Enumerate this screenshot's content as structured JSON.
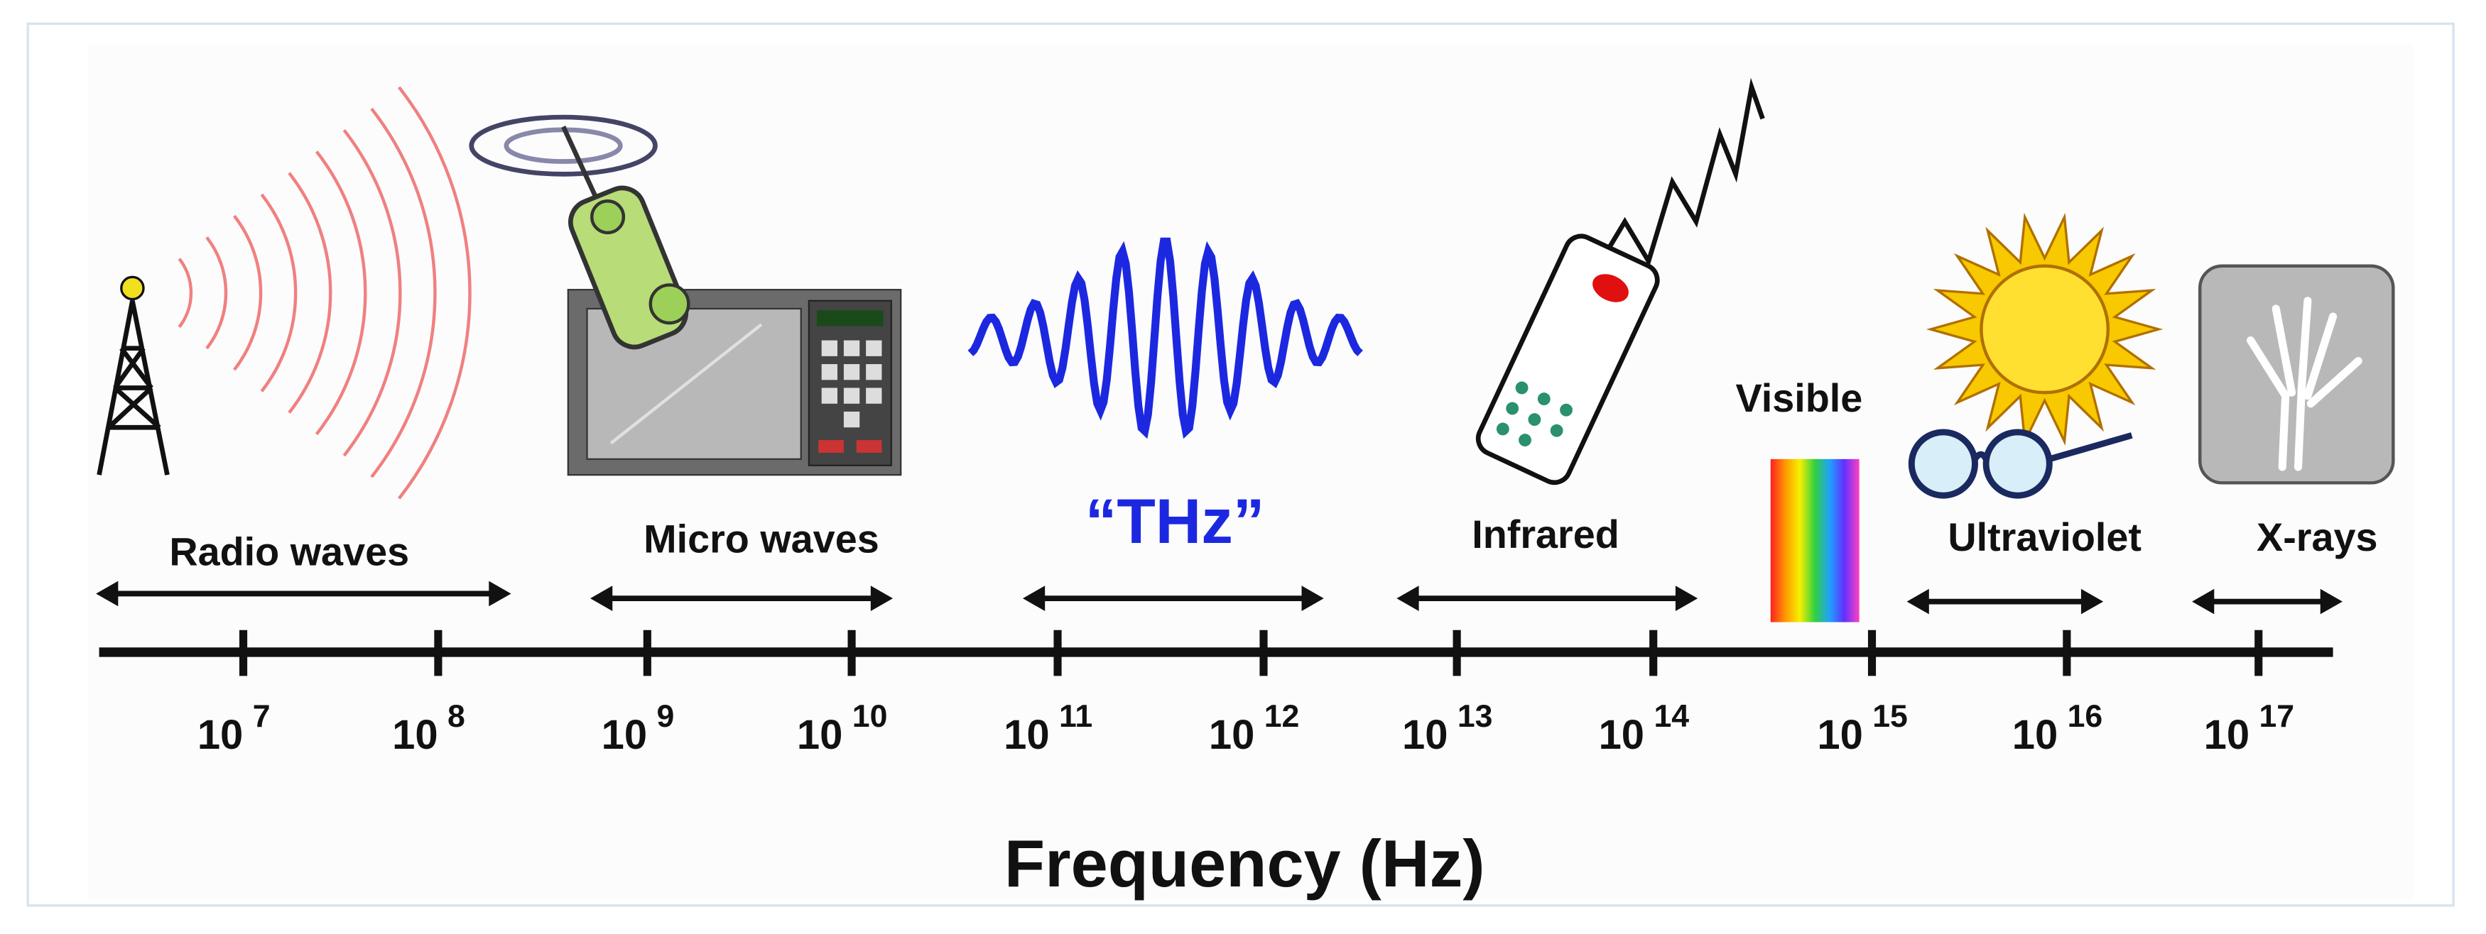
{
  "title": "Frequency (Hz)",
  "bands": [
    {
      "label": "Radio waves"
    },
    {
      "label": "Micro waves"
    },
    {
      "label": "“THz”"
    },
    {
      "label": "Infrared"
    },
    {
      "label": "Visible"
    },
    {
      "label": "Ultraviolet"
    },
    {
      "label": "X-rays"
    }
  ],
  "ticks": [
    {
      "base": "10",
      "exponent": "7"
    },
    {
      "base": "10",
      "exponent": "8"
    },
    {
      "base": "10",
      "exponent": "9"
    },
    {
      "base": "10",
      "exponent": "10"
    },
    {
      "base": "10",
      "exponent": "11"
    },
    {
      "base": "10",
      "exponent": "12"
    },
    {
      "base": "10",
      "exponent": "13"
    },
    {
      "base": "10",
      "exponent": "14"
    },
    {
      "base": "10",
      "exponent": "15"
    },
    {
      "base": "10",
      "exponent": "16"
    },
    {
      "base": "10",
      "exponent": "17"
    }
  ]
}
